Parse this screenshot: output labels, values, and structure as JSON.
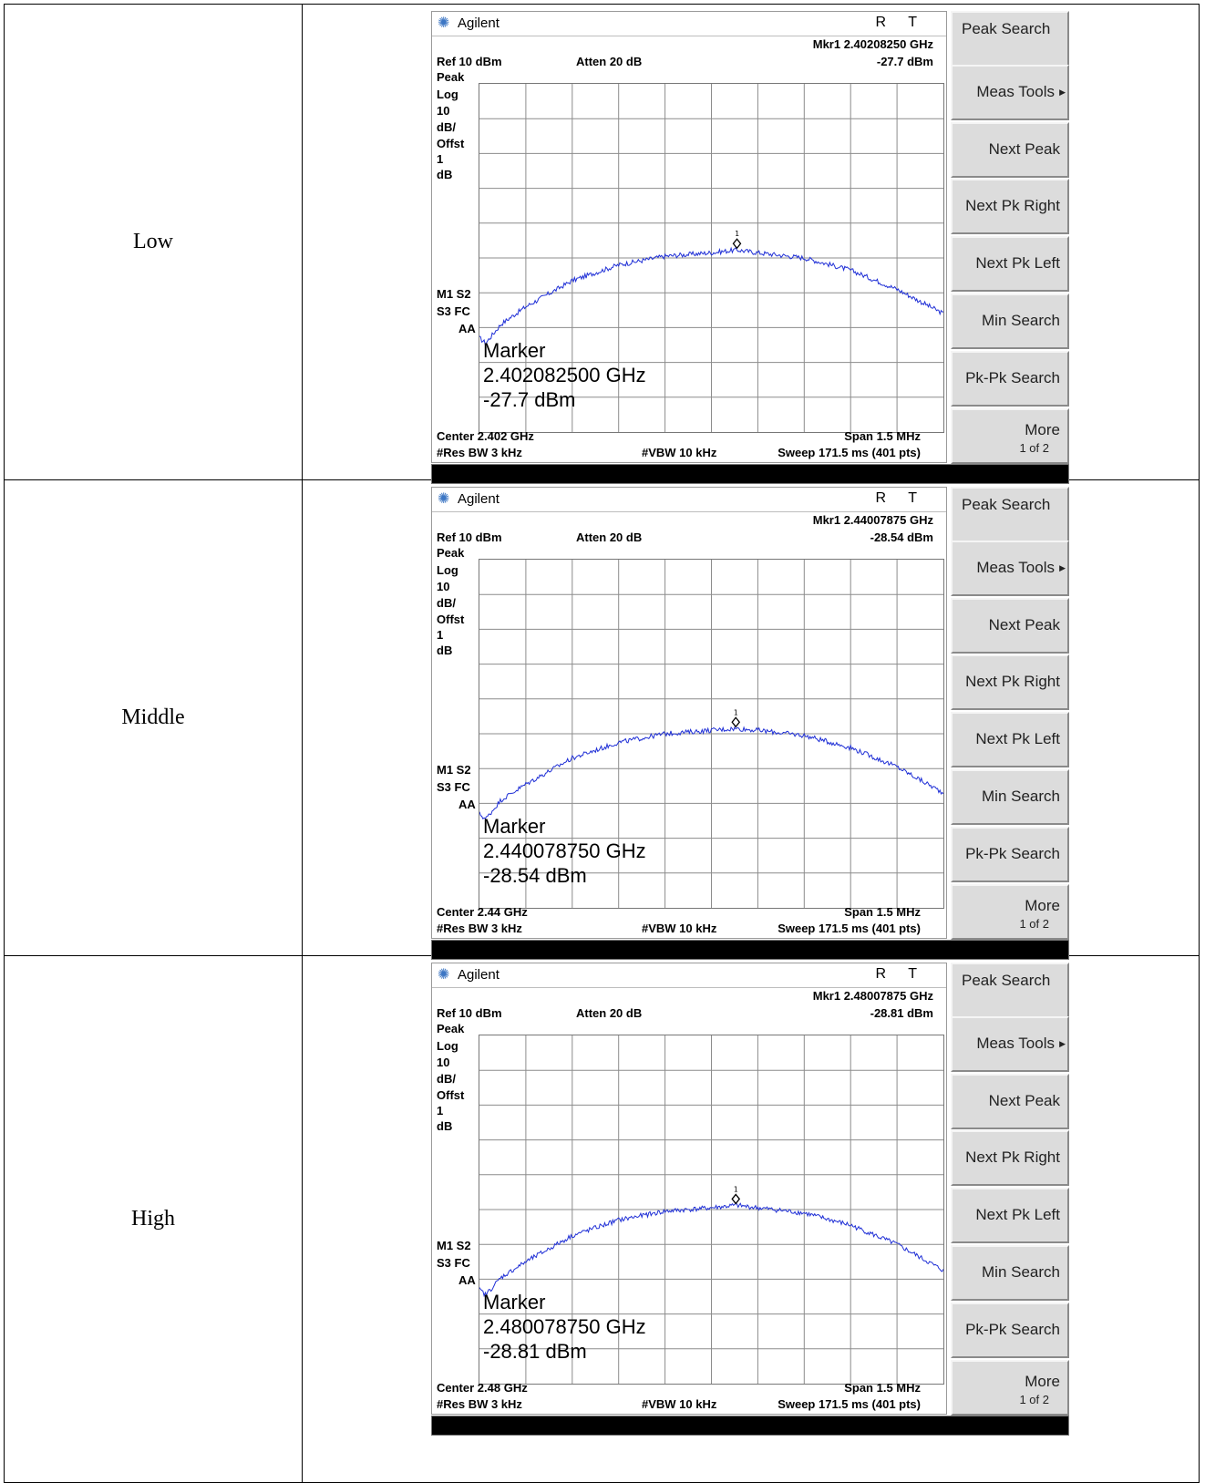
{
  "rows": [
    {
      "label": "Low",
      "analyzer": {
        "brand": "Agilent",
        "status": "R T",
        "mkr_line1": "Mkr1  2.40208250 GHz",
        "mkr_line2": "-27.7 dBm",
        "ref": "Ref 10 dBm",
        "atten": "Atten 20 dB",
        "side_top": [
          "Peak",
          "Log",
          "10",
          "dB/",
          "Offst",
          "1",
          "dB"
        ],
        "side_bottom": [
          "M1  S2",
          "S3  FC",
          "AA"
        ],
        "marker_title": "Marker",
        "marker_freq": "2.402082500 GHz",
        "marker_level": " -27.7 dBm",
        "center": "Center 2.402 GHz",
        "span": "Span 1.5 MHz",
        "res_bw": "#Res BW 3 kHz",
        "vbw": "#VBW 10 kHz",
        "sweep": "Sweep 171.5 ms (401 pts)"
      }
    },
    {
      "label": "Middle",
      "analyzer": {
        "brand": "Agilent",
        "status": "R T",
        "mkr_line1": "Mkr1  2.44007875 GHz",
        "mkr_line2": "-28.54 dBm",
        "ref": "Ref 10 dBm",
        "atten": "Atten 20 dB",
        "side_top": [
          "Peak",
          "Log",
          "10",
          "dB/",
          "Offst",
          "1",
          "dB"
        ],
        "side_bottom": [
          "M1  S2",
          "S3  FC",
          "AA"
        ],
        "marker_title": "Marker",
        "marker_freq": "2.440078750 GHz",
        "marker_level": "-28.54 dBm",
        "center": "Center 2.44 GHz",
        "span": "Span 1.5 MHz",
        "res_bw": "#Res BW 3 kHz",
        "vbw": "#VBW 10 kHz",
        "sweep": "Sweep 171.5 ms (401 pts)"
      }
    },
    {
      "label": "High",
      "analyzer": {
        "brand": "Agilent",
        "status": "R T",
        "mkr_line1": "Mkr1  2.48007875 GHz",
        "mkr_line2": "-28.81 dBm",
        "ref": "Ref 10 dBm",
        "atten": "Atten 20 dB",
        "side_top": [
          "Peak",
          "Log",
          "10",
          "dB/",
          "Offst",
          "1",
          "dB"
        ],
        "side_bottom": [
          "M1  S2",
          "S3  FC",
          "AA"
        ],
        "marker_title": "Marker",
        "marker_freq": "2.480078750 GHz",
        "marker_level": "-28.81 dBm",
        "center": "Center 2.48 GHz",
        "span": "Span 1.5 MHz",
        "res_bw": "#Res BW 3 kHz",
        "vbw": "#VBW 10 kHz",
        "sweep": "Sweep 171.5 ms (401 pts)"
      }
    }
  ],
  "softkeys": [
    "Peak Search",
    "Meas Tools",
    "Next Peak",
    "Next Pk Right",
    "Next Pk Left",
    "Min Search",
    "Pk-Pk Search",
    "More"
  ],
  "softkey_more_sub": "1 of 2",
  "chart_data": [
    {
      "type": "line",
      "ref_level_dbm": 10,
      "db_per_div": 10,
      "center_ghz": 2.402,
      "span_mhz": 1.5,
      "x_offset_mhz": [
        -0.75,
        -0.73,
        -0.68,
        -0.6,
        -0.45,
        -0.3,
        -0.15,
        0.0,
        0.082,
        0.15,
        0.3,
        0.45,
        0.6,
        0.75
      ],
      "level_dbm": [
        -63,
        -64.5,
        -59,
        -54,
        -46.5,
        -42,
        -39.5,
        -38.5,
        -37.7,
        -38.5,
        -40,
        -43.5,
        -49,
        -56
      ],
      "marker": {
        "freq_ghz": 2.4020825,
        "level_dbm": -27.7
      },
      "grid": true,
      "color": "#1f2fd6"
    },
    {
      "type": "line",
      "ref_level_dbm": 10,
      "db_per_div": 10,
      "center_ghz": 2.44,
      "span_mhz": 1.5,
      "x_offset_mhz": [
        -0.75,
        -0.73,
        -0.68,
        -0.6,
        -0.45,
        -0.3,
        -0.15,
        0.0,
        0.079,
        0.15,
        0.3,
        0.45,
        0.6,
        0.75
      ],
      "level_dbm": [
        -63,
        -64.5,
        -59,
        -54.5,
        -47,
        -42.5,
        -40,
        -39,
        -38.5,
        -39,
        -40.5,
        -44,
        -49.5,
        -57
      ],
      "marker": {
        "freq_ghz": 2.44007875,
        "level_dbm": -28.54
      },
      "grid": true,
      "color": "#1f2fd6"
    },
    {
      "type": "line",
      "ref_level_dbm": 10,
      "db_per_div": 10,
      "center_ghz": 2.48,
      "span_mhz": 1.5,
      "x_offset_mhz": [
        -0.75,
        -0.73,
        -0.68,
        -0.6,
        -0.45,
        -0.3,
        -0.15,
        0.0,
        0.079,
        0.15,
        0.3,
        0.45,
        0.6,
        0.75
      ],
      "level_dbm": [
        -63,
        -64.5,
        -59.5,
        -55,
        -47.5,
        -43,
        -40.5,
        -39.5,
        -38.8,
        -39.5,
        -41,
        -44.5,
        -50,
        -57.5
      ],
      "marker": {
        "freq_ghz": 2.48007875,
        "level_dbm": -28.81
      },
      "grid": true,
      "color": "#1f2fd6"
    }
  ]
}
